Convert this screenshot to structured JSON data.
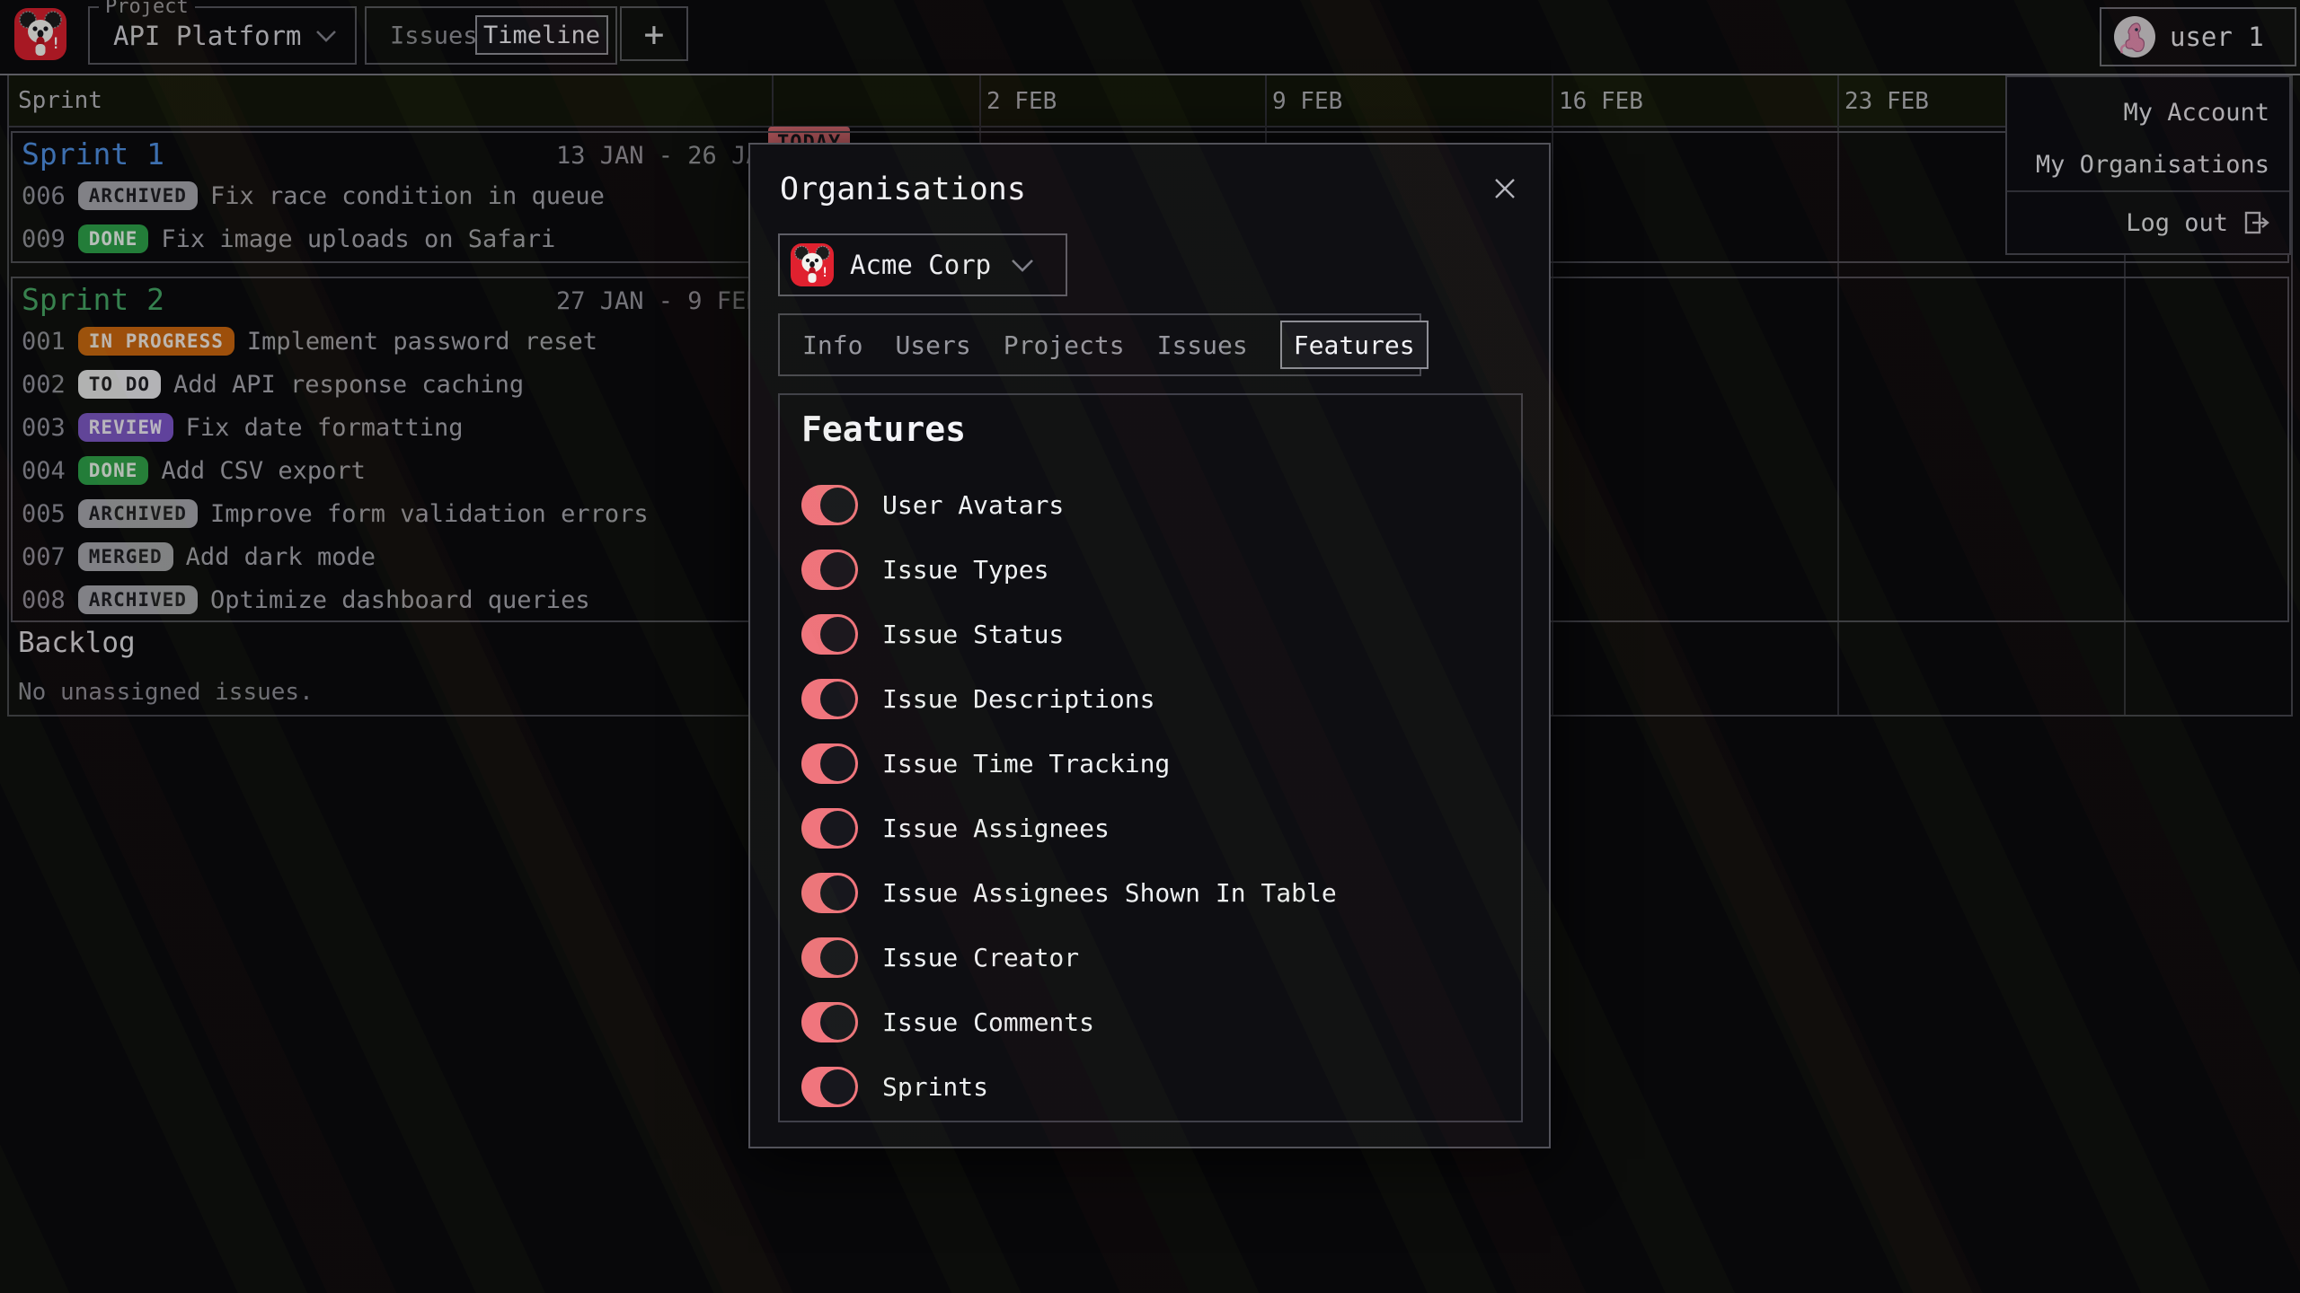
{
  "topbar": {
    "project_label": "Project",
    "project_name": "API Platform",
    "issues_tab": "Issues",
    "timeline_tab": "Timeline",
    "add_button": "+",
    "user_name": "user 1"
  },
  "user_menu": {
    "items": [
      "My Account",
      "My Organisations"
    ],
    "logout_label": "Log out"
  },
  "timeline": {
    "column_header": "Sprint",
    "date_headers": [
      "2 FEB",
      "9 FEB",
      "16 FEB",
      "23 FEB"
    ],
    "today_label": "TODAY",
    "sprints": [
      {
        "name": "Sprint 1",
        "color": "#4f8fe0",
        "range": "13 JAN - 26 JAN",
        "issues": [
          {
            "num": "006",
            "status": "ARCHIVED",
            "title": "Fix race condition in queue"
          },
          {
            "num": "009",
            "status": "DONE",
            "title": "Fix image uploads on Safari"
          }
        ]
      },
      {
        "name": "Sprint 2",
        "color": "#45a666",
        "range": "27 JAN - 9 FEB",
        "issues": [
          {
            "num": "001",
            "status": "IN PROGRESS",
            "title": "Implement password reset"
          },
          {
            "num": "002",
            "status": "TO DO",
            "title": "Add API response caching"
          },
          {
            "num": "003",
            "status": "REVIEW",
            "title": "Fix date formatting"
          },
          {
            "num": "004",
            "status": "DONE",
            "title": "Add CSV export"
          },
          {
            "num": "005",
            "status": "ARCHIVED",
            "title": "Improve form validation errors"
          },
          {
            "num": "007",
            "status": "MERGED",
            "title": "Add dark mode"
          },
          {
            "num": "008",
            "status": "ARCHIVED",
            "title": "Optimize dashboard queries"
          }
        ]
      }
    ],
    "backlog": {
      "title": "Backlog",
      "empty_text": "No unassigned issues."
    }
  },
  "status_colors": {
    "DONE": {
      "bg": "#2da04a",
      "fg": "#eaf4ec"
    },
    "ARCHIVED": {
      "bg": "#a6a6ac",
      "fg": "#1f1f24"
    },
    "MERGED": {
      "bg": "#a6a6ac",
      "fg": "#1f1f24"
    },
    "TO DO": {
      "bg": "#e6e6ea",
      "fg": "#1f1f24"
    },
    "REVIEW": {
      "bg": "#7b55c8",
      "fg": "#efeaf8"
    },
    "IN PROGRESS": {
      "bg": "#c9660f",
      "fg": "#f2eae0"
    }
  },
  "modal": {
    "title": "Organisations",
    "organisation": "Acme Corp",
    "tabs": [
      "Info",
      "Users",
      "Projects",
      "Issues",
      "Features"
    ],
    "active_tab": "Features",
    "features": {
      "heading": "Features",
      "toggles": [
        {
          "label": "User Avatars",
          "on": true
        },
        {
          "label": "Issue Types",
          "on": true
        },
        {
          "label": "Issue Status",
          "on": true
        },
        {
          "label": "Issue Descriptions",
          "on": true
        },
        {
          "label": "Issue Time Tracking",
          "on": true
        },
        {
          "label": "Issue Assignees",
          "on": true
        },
        {
          "label": "Issue Assignees Shown In Table",
          "on": true
        },
        {
          "label": "Issue Creator",
          "on": true
        },
        {
          "label": "Issue Comments",
          "on": true
        },
        {
          "label": "Sprints",
          "on": true
        }
      ]
    }
  },
  "colors": {
    "accent_pink": "#f0757d",
    "today_text": "#1c1c20",
    "modal_bg": "#0f0f13",
    "page_bg": "#0b0b0e"
  }
}
